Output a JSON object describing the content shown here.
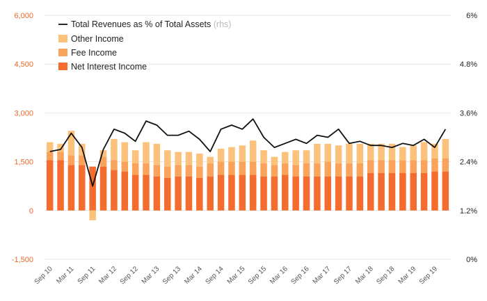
{
  "colors": {
    "net_interest": "#f46d2e",
    "fee": "#f9a45a",
    "other": "#fcc17a",
    "line": "#111111",
    "left_axis_text": "#e8682a",
    "grid": "#e6e6e6"
  },
  "chart_data": {
    "type": "bar",
    "title": "",
    "xlabel": "",
    "ylabel": "",
    "ylim": [
      -1500,
      6000
    ],
    "y2lim": [
      0,
      6
    ],
    "yticks": [
      "-1,500",
      "0",
      "1,500",
      "3,000",
      "4,500",
      "6,000"
    ],
    "yticks_right": [
      "0%",
      "1.2%",
      "2.4%",
      "3.6%",
      "4.8%",
      "6%"
    ],
    "grid": true,
    "legend_position": "top-left",
    "legend": {
      "line_label": "Total Revenues as % of Total Assets",
      "line_suffix": "(rhs)",
      "items": [
        "Other Income",
        "Fee Income",
        "Net Interest Income"
      ]
    },
    "categories": [
      "Sep 10",
      "Dec 10",
      "Mar 11",
      "Jun 11",
      "Sep 11",
      "Dec 11",
      "Mar 12",
      "Jun 12",
      "Sep 12",
      "Dec 12",
      "Mar 13",
      "Jun 13",
      "Sep 13",
      "Dec 13",
      "Mar 14",
      "Jun 14",
      "Sep 14",
      "Dec 14",
      "Mar 15",
      "Jun 15",
      "Sep 15",
      "Dec 15",
      "Mar 16",
      "Jun 16",
      "Sep 16",
      "Dec 16",
      "Mar 17",
      "Jun 17",
      "Sep 17",
      "Dec 17",
      "Mar 18",
      "Jun 18",
      "Sep 18",
      "Dec 18",
      "Mar 19",
      "Jun 19",
      "Sep 19",
      "Dec 19"
    ],
    "xtick_labels": [
      "Sep 10",
      "Mar 11",
      "Sep 11",
      "Mar 12",
      "Sep 12",
      "Mar 13",
      "Sep 13",
      "Mar 14",
      "Sep 14",
      "Mar 15",
      "Sep 15",
      "Mar 16",
      "Sep 16",
      "Mar 17",
      "Sep 17",
      "Mar 18",
      "Sep 18",
      "Mar 19",
      "Sep 19"
    ],
    "series": [
      {
        "name": "Net Interest Income",
        "axis": "left",
        "kind": "bar",
        "values": [
          1550,
          1550,
          1400,
          1400,
          1350,
          1350,
          1250,
          1200,
          1100,
          1100,
          1050,
          1000,
          1050,
          1050,
          1000,
          1050,
          1100,
          1100,
          1100,
          1100,
          1050,
          1050,
          1100,
          1050,
          1050,
          1050,
          1050,
          1050,
          1050,
          1050,
          1150,
          1150,
          1150,
          1150,
          1150,
          1150,
          1200,
          1200
        ]
      },
      {
        "name": "Fee Income",
        "axis": "left",
        "kind": "bar",
        "values": [
          250,
          250,
          300,
          300,
          0,
          300,
          300,
          300,
          350,
          350,
          350,
          350,
          350,
          350,
          350,
          400,
          400,
          400,
          400,
          400,
          400,
          350,
          350,
          350,
          400,
          400,
          450,
          400,
          400,
          400,
          400,
          400,
          400,
          400,
          400,
          400,
          400,
          400
        ]
      },
      {
        "name": "Other Income",
        "axis": "left",
        "kind": "bar",
        "values": [
          300,
          250,
          750,
          350,
          -300,
          200,
          650,
          600,
          400,
          650,
          650,
          500,
          400,
          400,
          400,
          200,
          400,
          450,
          500,
          650,
          400,
          250,
          350,
          450,
          400,
          600,
          550,
          550,
          600,
          600,
          500,
          500,
          500,
          400,
          450,
          550,
          450,
          600
        ]
      },
      {
        "name": "Total Revenues as % of Total Assets",
        "axis": "right",
        "kind": "line",
        "values": [
          2.65,
          2.7,
          3.1,
          2.75,
          1.8,
          2.7,
          3.2,
          3.1,
          2.9,
          3.4,
          3.3,
          3.05,
          3.05,
          3.15,
          2.95,
          2.65,
          3.2,
          3.3,
          3.2,
          3.45,
          3.0,
          2.75,
          2.85,
          2.95,
          2.85,
          3.05,
          3.0,
          3.2,
          2.85,
          2.9,
          2.8,
          2.8,
          2.75,
          2.85,
          2.8,
          2.95,
          2.75,
          3.2
        ]
      }
    ]
  }
}
